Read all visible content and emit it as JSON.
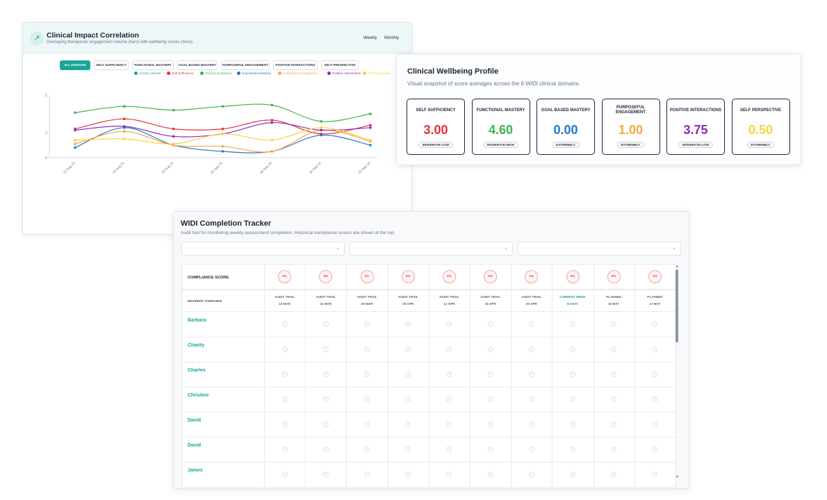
{
  "impact": {
    "title": "Clinical Impact Correlation",
    "subtitle": "Overlaying therapeutic engagement volume (bars) with wellbeing scores (lines).",
    "icon": "trend-up-icon",
    "toggles": [
      "Weekly",
      "Monthly"
    ],
    "chips": [
      "ALL DOMAINS",
      "SELF SUFFICIENCY",
      "FUNCTIONAL MASTERY",
      "GOAL BASED MASTERY",
      "PURPOSEFUL ENGAGEMENT",
      "POSITIVE INTERACTIONS",
      "SELF PERSPECTIVE"
    ],
    "active_chip": "ALL DOMAINS",
    "legend": [
      {
        "label": "Activity Volume",
        "color": "#17a697"
      },
      {
        "label": "Self Sufficiency",
        "color": "#e5303f"
      },
      {
        "label": "Functional Mastery",
        "color": "#3db549"
      },
      {
        "label": "Goal Based Mastery",
        "color": "#1f78c8"
      },
      {
        "label": "Purposeful Engagement",
        "color": "#f6a83c"
      },
      {
        "label": "Positive Interactions",
        "color": "#8e2bb8"
      },
      {
        "label": "Self Perspective",
        "color": "#f7d23c"
      }
    ]
  },
  "chart_data": {
    "type": "line",
    "x": [
      "12 Aug 24",
      "19 Aug 24",
      "26 Aug 24",
      "02 Sep 24",
      "09 Sep 24",
      "16 Sep 24",
      "23 Sep 24"
    ],
    "ylim": [
      0,
      5
    ],
    "yticks": [
      "0",
      "2",
      "5"
    ],
    "series": [
      {
        "name": "Self Sufficiency",
        "color": "#e5303f",
        "values": [
          2.3,
          3.1,
          2.3,
          2.3,
          3.0,
          1.9,
          2.6
        ]
      },
      {
        "name": "Functional Mastery",
        "color": "#3db549",
        "values": [
          3.6,
          4.1,
          3.8,
          4.1,
          4.2,
          2.9,
          3.5
        ]
      },
      {
        "name": "Goal Based Mastery",
        "color": "#1f78c8",
        "values": [
          0.8,
          2.4,
          1.0,
          0.5,
          0.5,
          1.8,
          1.0
        ]
      },
      {
        "name": "Purposeful Engagement",
        "color": "#f6a83c",
        "values": [
          1.1,
          2.1,
          1.0,
          0.9,
          0.5,
          2.2,
          1.3
        ]
      },
      {
        "name": "Positive Interactions",
        "color": "#8e2bb8",
        "values": [
          2.2,
          2.5,
          1.7,
          1.9,
          2.8,
          2.2,
          2.4
        ]
      },
      {
        "name": "Self Perspective",
        "color": "#f7d23c",
        "values": [
          1.4,
          1.5,
          1.1,
          1.9,
          1.4,
          2.4,
          1.4
        ]
      }
    ]
  },
  "profile": {
    "title": "Clinical Wellbeing Profile",
    "subtitle": "Visual snapshot of score averages across the 6 WIDI clinical domains.",
    "domains": [
      {
        "name": "SELF SUFFICIENCY",
        "score": "3.00",
        "level": "MODERATE-LOW",
        "color": "#e5303f"
      },
      {
        "name": "FUNCTIONAL MASTERY",
        "score": "4.60",
        "level": "MODERATE-HIGH",
        "color": "#3db549"
      },
      {
        "name": "GOAL BASED MASTERY",
        "score": "0.00",
        "level": "EXTREMELY",
        "color": "#1f78c8"
      },
      {
        "name": "PURPOSEFUL ENGAGEMENT",
        "score": "1.00",
        "level": "EXTREMELY",
        "color": "#f6a83c"
      },
      {
        "name": "POSITIVE INTERACTIONS",
        "score": "3.75",
        "level": "MODERATE-LOW",
        "color": "#8e2bb8"
      },
      {
        "name": "SELF PERSPECTIVE",
        "score": "0.50",
        "level": "EXTREMELY",
        "color": "#f7d23c"
      }
    ]
  },
  "tracker": {
    "title": "WIDI Completion Tracker",
    "subtitle": "Audit tool for monitoring weekly assessment completion. Historical compliance scores are shown at the top.",
    "compliance_label": "COMPLIANCE SCORE",
    "resident_header": "RESIDENT OVERVIEW",
    "weeks": [
      {
        "type": "AUDIT TRAIL",
        "date": "15 MAR",
        "score": "0%",
        "current": false
      },
      {
        "type": "AUDIT TRAIL",
        "date": "22 MAR",
        "score": "0%",
        "current": false
      },
      {
        "type": "AUDIT TRAIL",
        "date": "29 MAR",
        "score": "0%",
        "current": false
      },
      {
        "type": "AUDIT TRAIL",
        "date": "05 APR",
        "score": "0%",
        "current": false
      },
      {
        "type": "AUDIT TRAIL",
        "date": "12 APR",
        "score": "0%",
        "current": false
      },
      {
        "type": "AUDIT TRAIL",
        "date": "19 APR",
        "score": "0%",
        "current": false
      },
      {
        "type": "AUDIT TRAIL",
        "date": "26 APR",
        "score": "0%",
        "current": false
      },
      {
        "type": "CURRENT WEEK",
        "date": "03 MAY",
        "score": "0%",
        "current": true
      },
      {
        "type": "PLANNED",
        "date": "10 MAY",
        "score": "0%",
        "current": false
      },
      {
        "type": "PLANNED",
        "date": "17 MAY",
        "score": "0%",
        "current": false
      }
    ],
    "residents": [
      "Barbara",
      "Charity",
      "Charles",
      "Christine",
      "David",
      "David",
      "James"
    ]
  }
}
